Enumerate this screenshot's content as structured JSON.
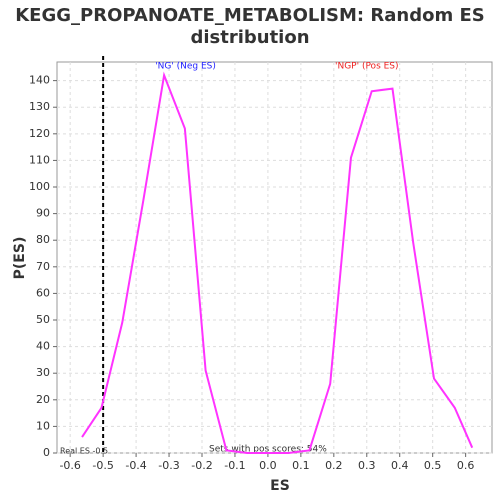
{
  "chart_data": {
    "type": "line",
    "title": "KEGG_PROPANOATE_METABOLISM: Random ES distribution",
    "x_label": "ES",
    "y_label": "P(ES)",
    "x": [
      -0.564,
      -0.505,
      -0.442,
      -0.378,
      -0.315,
      -0.252,
      -0.189,
      -0.126,
      -0.063,
      0.0,
      0.063,
      0.126,
      0.189,
      0.252,
      0.315,
      0.378,
      0.441,
      0.504,
      0.567,
      0.62
    ],
    "series": [
      {
        "name": "P(ES)",
        "color": "#ff33ff",
        "values": [
          6,
          17,
          49,
          95,
          142,
          122,
          31,
          1,
          0,
          0,
          0,
          1,
          26,
          111,
          136,
          137,
          79,
          28,
          17,
          2
        ]
      }
    ],
    "xlim": [
      -0.64,
      0.68
    ],
    "ylim": [
      0,
      147
    ],
    "xticks": [
      -0.6,
      -0.5,
      -0.4,
      -0.3,
      -0.2,
      -0.1,
      {
        "value": 0,
        "label": "0.0"
      },
      0.1,
      0.2,
      0.3,
      0.4,
      0.5,
      0.6
    ],
    "yticks": [
      0,
      10,
      20,
      30,
      40,
      50,
      60,
      70,
      80,
      90,
      100,
      110,
      120,
      130,
      140
    ],
    "grid": true,
    "real_es": -0.5,
    "annotations": {
      "neg": "'NG' (Neg ES)",
      "pos": "'NGP' (Pos ES)",
      "real": "Real ES -0.5",
      "pos_scores": "Sets with pos scores: 54%"
    }
  }
}
